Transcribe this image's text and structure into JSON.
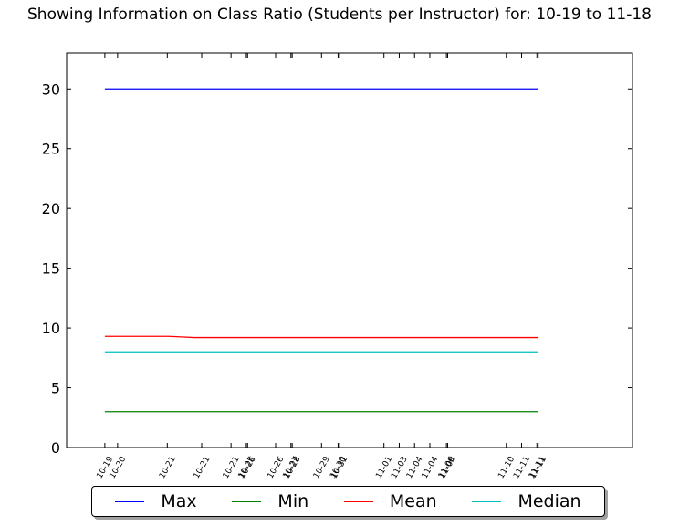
{
  "chart_data": {
    "type": "line",
    "title": "Showing Information on Class Ratio (Students per Instructor) for: 10-19 to 11-18",
    "xlabel": "",
    "ylabel": "",
    "ylim": [
      0,
      33
    ],
    "yticks": [
      0,
      5,
      10,
      15,
      20,
      25,
      30
    ],
    "x": [
      0,
      1,
      2,
      3,
      4,
      5,
      6,
      7,
      8,
      9,
      10,
      11,
      12,
      13,
      14,
      15,
      16,
      17,
      18,
      19,
      20,
      21,
      22,
      23,
      24,
      25,
      26,
      27,
      28,
      29,
      30,
      31,
      32,
      33,
      34
    ],
    "xlim": [
      -3,
      41.4
    ],
    "xticks": [
      {
        "x": 0,
        "label": "10-19"
      },
      {
        "x": 1,
        "label": "10-20"
      },
      {
        "x": 4.9,
        "label": "10-21"
      },
      {
        "x": 7.6,
        "label": "10-21"
      },
      {
        "x": 9.9,
        "label": "10-21"
      },
      {
        "x": 11.1,
        "label": "10-25"
      },
      {
        "x": 11.2,
        "label": "10-26"
      },
      {
        "x": 13.4,
        "label": "10-26"
      },
      {
        "x": 14.6,
        "label": "10-27"
      },
      {
        "x": 14.7,
        "label": "10-28"
      },
      {
        "x": 17.0,
        "label": "10-29"
      },
      {
        "x": 18.3,
        "label": "10-30"
      },
      {
        "x": 18.4,
        "label": "10-31"
      },
      {
        "x": 21.9,
        "label": "11-01"
      },
      {
        "x": 23.1,
        "label": "11-03"
      },
      {
        "x": 24.3,
        "label": "11-04"
      },
      {
        "x": 25.5,
        "label": "11-04"
      },
      {
        "x": 26.8,
        "label": "11-06"
      },
      {
        "x": 26.9,
        "label": "11-08"
      },
      {
        "x": 31.5,
        "label": "11-10"
      },
      {
        "x": 32.7,
        "label": "11-11"
      },
      {
        "x": 33.9,
        "label": "11-11"
      },
      {
        "x": 34.0,
        "label": "11-11"
      }
    ],
    "series": [
      {
        "name": "Max",
        "color": "#0000ff",
        "values": [
          30,
          30,
          30,
          30,
          30,
          30,
          30,
          30,
          30,
          30,
          30,
          30,
          30,
          30,
          30,
          30,
          30,
          30,
          30,
          30,
          30,
          30,
          30,
          30,
          30,
          30,
          30,
          30,
          30,
          30,
          30,
          30,
          30,
          30,
          30
        ]
      },
      {
        "name": "Min",
        "color": "#008000",
        "values": [
          3,
          3,
          3,
          3,
          3,
          3,
          3,
          3,
          3,
          3,
          3,
          3,
          3,
          3,
          3,
          3,
          3,
          3,
          3,
          3,
          3,
          3,
          3,
          3,
          3,
          3,
          3,
          3,
          3,
          3,
          3,
          3,
          3,
          3,
          3
        ]
      },
      {
        "name": "Mean",
        "color": "#ff0000",
        "values": [
          9.3,
          9.3,
          9.3,
          9.3,
          9.3,
          9.3,
          9.25,
          9.2,
          9.2,
          9.2,
          9.2,
          9.2,
          9.2,
          9.2,
          9.2,
          9.2,
          9.2,
          9.2,
          9.2,
          9.2,
          9.2,
          9.2,
          9.2,
          9.2,
          9.2,
          9.2,
          9.2,
          9.2,
          9.2,
          9.2,
          9.2,
          9.2,
          9.2,
          9.2,
          9.2
        ]
      },
      {
        "name": "Median",
        "color": "#00bfbf",
        "values": [
          8,
          8,
          8,
          8,
          8,
          8,
          8,
          8,
          8,
          8,
          8,
          8,
          8,
          8,
          8,
          8,
          8,
          8,
          8,
          8,
          8,
          8,
          8,
          8,
          8,
          8,
          8,
          8,
          8,
          8,
          8,
          8,
          8,
          8,
          8
        ]
      }
    ],
    "grid": false,
    "legend_position": "bottom-center"
  }
}
